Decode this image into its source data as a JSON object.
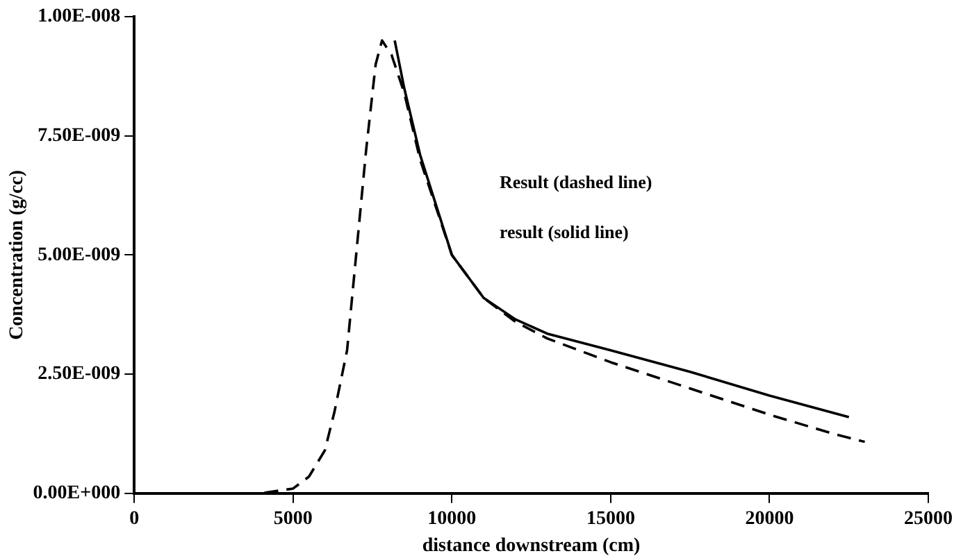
{
  "chart_data": {
    "type": "line",
    "xlabel": "distance downstream (cm)",
    "ylabel": "Concentration (g/cc)",
    "xlim": [
      0,
      25000
    ],
    "xticks": [
      0,
      5000,
      10000,
      15000,
      20000,
      25000
    ],
    "ylim": [
      0,
      1e-08
    ],
    "yticks": [
      {
        "value": 0,
        "label": "0.00E+000"
      },
      {
        "value": 2.5e-09,
        "label": "2.50E-009"
      },
      {
        "value": 5e-09,
        "label": "5.00E-009"
      },
      {
        "value": 7.5e-09,
        "label": "7.50E-009"
      },
      {
        "value": 1e-08,
        "label": "1.00E-008"
      }
    ],
    "grid": false,
    "legend": false,
    "marker": "none",
    "annotations": [
      "Result (dashed line)",
      "result (solid line)"
    ],
    "series": [
      {
        "color": "#000000",
        "line_style": "dashed",
        "x": [
          2000,
          3000,
          4000,
          5000,
          5500,
          6000,
          6300,
          6700,
          7000,
          7300,
          7600,
          7800,
          8100,
          8500,
          9000,
          10000,
          11000,
          12000,
          13000,
          15000,
          17500,
          20000,
          22000,
          23000
        ],
        "values": [
          0,
          0,
          0,
          1e-10,
          3.5e-10,
          9e-10,
          1.7e-09,
          3e-09,
          5.1e-09,
          7.2e-09,
          9e-09,
          9.5e-09,
          9.2e-09,
          8.4e-09,
          7e-09,
          5e-09,
          4.1e-09,
          3.6e-09,
          3.25e-09,
          2.75e-09,
          2.2e-09,
          1.65e-09,
          1.25e-09,
          1.08e-09
        ]
      },
      {
        "color": "#000000",
        "line_style": "solid",
        "x": [
          8200,
          8500,
          9000,
          10000,
          11000,
          12000,
          13000,
          15000,
          17500,
          20000,
          22500
        ],
        "values": [
          9.5e-09,
          8.5e-09,
          7.1e-09,
          5e-09,
          4.1e-09,
          3.65e-09,
          3.35e-09,
          3e-09,
          2.55e-09,
          2.05e-09,
          1.6e-09
        ]
      }
    ]
  }
}
